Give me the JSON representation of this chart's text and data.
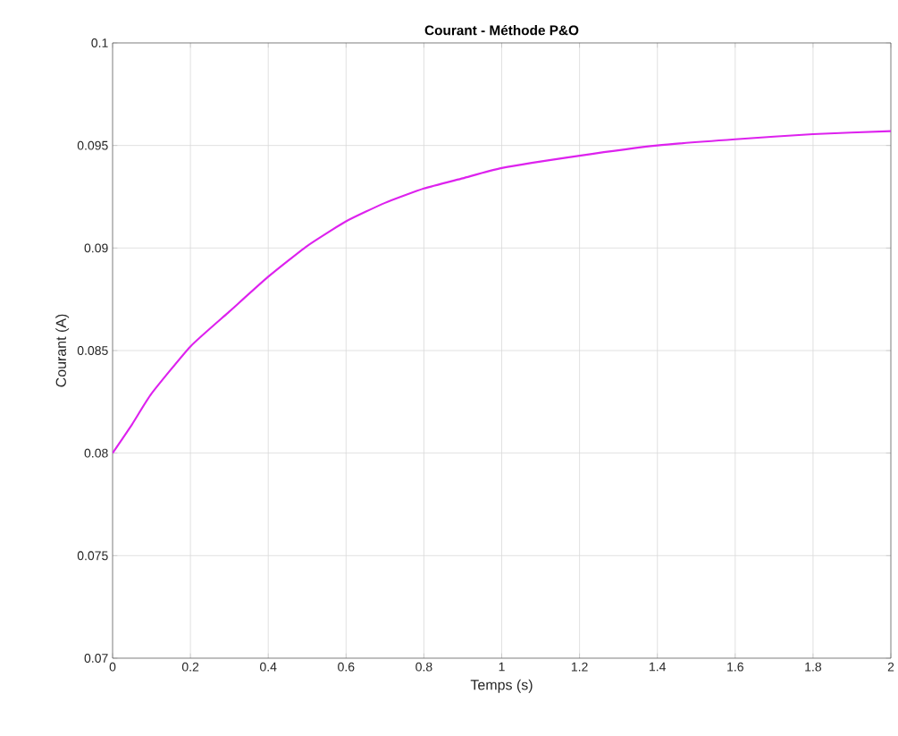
{
  "chart_data": {
    "type": "line",
    "title": "Courant - Méthode P&O",
    "xlabel": "Temps (s)",
    "ylabel": "Courant (A)",
    "x": [
      0,
      0.05,
      0.1,
      0.2,
      0.3,
      0.4,
      0.5,
      0.6,
      0.7,
      0.8,
      0.9,
      1.0,
      1.2,
      1.4,
      1.6,
      1.8,
      2.0
    ],
    "series": [
      {
        "color": "#dd22ee",
        "values": [
          0.08,
          0.0814,
          0.0829,
          0.0852,
          0.0869,
          0.0886,
          0.0901,
          0.0913,
          0.0922,
          0.0929,
          0.0934,
          0.0939,
          0.0945,
          0.095,
          0.0953,
          0.09555,
          0.0957
        ]
      }
    ],
    "xlim": [
      0,
      2
    ],
    "ylim": [
      0.07,
      0.1
    ],
    "xticks": [
      0,
      0.2,
      0.4,
      0.6,
      0.8,
      1,
      1.2,
      1.4,
      1.6,
      1.8,
      2
    ],
    "yticks": [
      0.07,
      0.075,
      0.08,
      0.085,
      0.09,
      0.095,
      0.1
    ],
    "grid": true
  }
}
